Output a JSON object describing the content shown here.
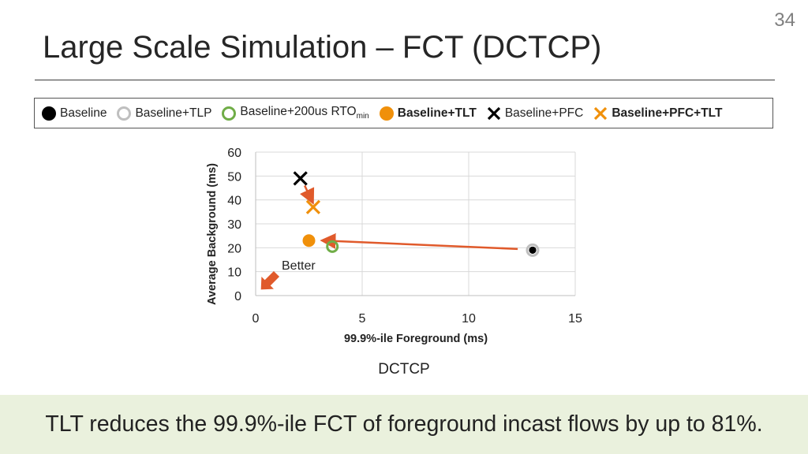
{
  "slide_number": "34",
  "title": "Large Scale Simulation – FCT (DCTCP)",
  "legend": [
    {
      "label": "Baseline",
      "sub": "",
      "marker": "filled-circle",
      "color": "#000000",
      "bold": false
    },
    {
      "label": "Baseline+TLP",
      "sub": "",
      "marker": "hollow-circle",
      "color": "#bfbfbf",
      "bold": false
    },
    {
      "label": "Baseline+200us RTO",
      "sub": "min",
      "marker": "hollow-circle",
      "color": "#70ad47",
      "bold": false
    },
    {
      "label": "Baseline+TLT",
      "sub": "",
      "marker": "filled-circle",
      "color": "#f0900a",
      "bold": true
    },
    {
      "label": "Baseline+PFC",
      "sub": "",
      "marker": "x",
      "color": "#000000",
      "bold": false
    },
    {
      "label": "Baseline+PFC+TLT",
      "sub": "",
      "marker": "x",
      "color": "#f0900a",
      "bold": true
    }
  ],
  "chart_data": {
    "type": "scatter",
    "xlabel": "99.9%-ile Foreground (ms)",
    "ylabel": "Average Background (ms)",
    "xlim": [
      0,
      15
    ],
    "ylim": [
      0,
      60
    ],
    "xticks": [
      0,
      5,
      10,
      15
    ],
    "yticks": [
      0,
      10,
      20,
      30,
      40,
      50,
      60
    ],
    "grid": true,
    "series": [
      {
        "name": "Baseline",
        "marker": "filled-circle",
        "color": "#000000",
        "points": [
          [
            13.0,
            19
          ]
        ]
      },
      {
        "name": "Baseline+TLP",
        "marker": "hollow-circle",
        "color": "#bfbfbf",
        "points": [
          [
            13.0,
            19
          ]
        ]
      },
      {
        "name": "Baseline+200us RTOmin",
        "marker": "hollow-circle",
        "color": "#70ad47",
        "points": [
          [
            3.6,
            20.5
          ]
        ]
      },
      {
        "name": "Baseline+TLT",
        "marker": "filled-circle",
        "color": "#f0900a",
        "points": [
          [
            2.5,
            23
          ]
        ]
      },
      {
        "name": "Baseline+PFC",
        "marker": "x",
        "color": "#000000",
        "points": [
          [
            2.1,
            49
          ]
        ]
      },
      {
        "name": "Baseline+PFC+TLT",
        "marker": "x",
        "color": "#f0900a",
        "points": [
          [
            2.7,
            37
          ]
        ]
      }
    ],
    "annotations": [
      {
        "type": "arrow",
        "from": [
          12.3,
          19.5
        ],
        "to": [
          3.2,
          23
        ],
        "color": "#e05a2b"
      },
      {
        "type": "arrow",
        "from": [
          2.3,
          46
        ],
        "to": [
          2.65,
          39.5
        ],
        "color": "#e05a2b"
      },
      {
        "type": "label-arrow",
        "text": "Better",
        "color": "#e05a2b"
      }
    ],
    "subtitle": "DCTCP"
  },
  "footer": "TLT reduces the 99.9%-ile FCT of foreground incast flows by up to 81%."
}
